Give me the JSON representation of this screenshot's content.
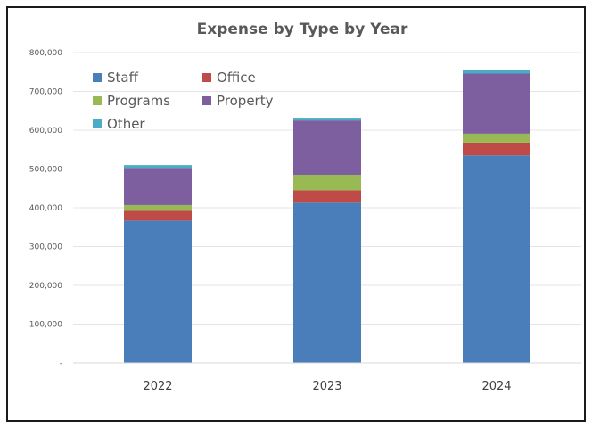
{
  "chart_data": {
    "type": "bar",
    "stacked": true,
    "title": "Expense by Type by Year",
    "xlabel": "",
    "ylabel": "",
    "categories": [
      "2022",
      "2023",
      "2024"
    ],
    "ylim": [
      0,
      800000
    ],
    "yticks": [
      0,
      100000,
      200000,
      300000,
      400000,
      500000,
      600000,
      700000,
      800000
    ],
    "ytick_labels": [
      "-",
      "100,000",
      "200,000",
      "300,000",
      "400,000",
      "500,000",
      "600,000",
      "700,000",
      "800,000"
    ],
    "grid": true,
    "legend_position": "top-left",
    "series": [
      {
        "name": "Staff",
        "color": "#4a7ebb",
        "values": [
          367000,
          413000,
          535000
        ]
      },
      {
        "name": "Office",
        "color": "#be4b48",
        "values": [
          25000,
          32000,
          33000
        ]
      },
      {
        "name": "Programs",
        "color": "#98b954",
        "values": [
          15000,
          40000,
          23000
        ]
      },
      {
        "name": "Property",
        "color": "#7d5fa0",
        "values": [
          96000,
          140000,
          155000
        ]
      },
      {
        "name": "Other",
        "color": "#4bacc6",
        "values": [
          7000,
          7000,
          8000
        ]
      }
    ]
  }
}
